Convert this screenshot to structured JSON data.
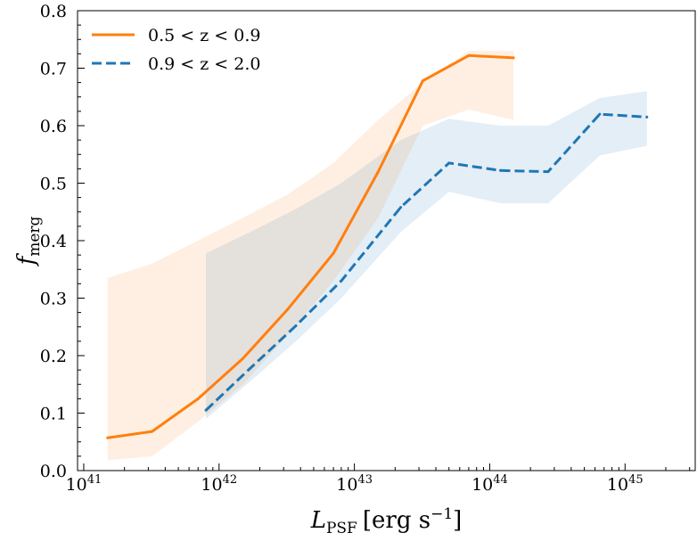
{
  "chart_data": {
    "type": "line",
    "xscale": "log",
    "xlabel": "L_PSF [erg s^-1]",
    "xlabel_main": "L",
    "xlabel_sub": "PSF",
    "xlabel_units": "[erg s",
    "xlabel_exp": "−1",
    "xlabel_close": "]",
    "ylabel": "f_merg",
    "ylabel_main": "f",
    "ylabel_sub": "merg",
    "xlim": [
      9e+40,
      3.3e+45
    ],
    "ylim": [
      0.0,
      0.8
    ],
    "x_ticks": [
      {
        "value": 1e+41,
        "base": "10",
        "exp": "41"
      },
      {
        "value": 1e+42,
        "base": "10",
        "exp": "42"
      },
      {
        "value": 1e+43,
        "base": "10",
        "exp": "43"
      },
      {
        "value": 1e+44,
        "base": "10",
        "exp": "44"
      },
      {
        "value": 1e+45,
        "base": "10",
        "exp": "45"
      }
    ],
    "y_ticks": [
      {
        "value": 0.0,
        "label": "0.0"
      },
      {
        "value": 0.1,
        "label": "0.1"
      },
      {
        "value": 0.2,
        "label": "0.2"
      },
      {
        "value": 0.3,
        "label": "0.3"
      },
      {
        "value": 0.4,
        "label": "0.4"
      },
      {
        "value": 0.5,
        "label": "0.5"
      },
      {
        "value": 0.6,
        "label": "0.6"
      },
      {
        "value": 0.7,
        "label": "0.7"
      },
      {
        "value": 0.8,
        "label": "0.8"
      }
    ],
    "legend_position": "top-left",
    "series": [
      {
        "name": "0.5 < z < 0.9",
        "legend_label": "0.5 < z < 0.9",
        "color": "#ff7f0e",
        "linestyle": "solid",
        "x": [
          1.5e+41,
          3.2e+41,
          7e+41,
          1.5e+42,
          3.2e+42,
          7e+42,
          1.5e+43,
          3.2e+43,
          7e+43,
          1.5e+44
        ],
        "values": [
          0.057,
          0.068,
          0.125,
          0.195,
          0.28,
          0.378,
          0.52,
          0.678,
          0.722,
          0.718
        ],
        "band_x": [
          1.5e+41,
          3.2e+41,
          7e+41,
          1.5e+42,
          3.2e+42,
          7e+42,
          1.5e+43,
          3.2e+43,
          7e+43,
          1.5e+44
        ],
        "band_lower": [
          0.018,
          0.025,
          0.085,
          0.15,
          0.235,
          0.33,
          0.44,
          0.6,
          0.628,
          0.61
        ],
        "band_upper": [
          0.335,
          0.36,
          0.4,
          0.44,
          0.48,
          0.535,
          0.61,
          0.675,
          0.73,
          0.73
        ]
      },
      {
        "name": "0.9 < z < 2.0",
        "legend_label": "0.9 < z < 2.0",
        "color": "#1f77b4",
        "linestyle": "dashed",
        "x": [
          8e+41,
          1.7e+42,
          3.7e+42,
          8e+42,
          2.2e+43,
          5e+43,
          1.2e+44,
          2.7e+44,
          6.5e+44,
          1.45e+45
        ],
        "values": [
          0.105,
          0.178,
          0.252,
          0.33,
          0.458,
          0.535,
          0.522,
          0.52,
          0.62,
          0.615
        ],
        "band_x": [
          8e+41,
          1.7e+42,
          3.7e+42,
          8e+42,
          2.2e+43,
          5e+43,
          1.2e+44,
          2.7e+44,
          6.5e+44,
          1.45e+45
        ],
        "band_lower": [
          0.09,
          0.155,
          0.225,
          0.3,
          0.415,
          0.485,
          0.465,
          0.465,
          0.548,
          0.565
        ],
        "band_upper": [
          0.378,
          0.415,
          0.455,
          0.5,
          0.575,
          0.612,
          0.6,
          0.6,
          0.648,
          0.66
        ]
      }
    ]
  }
}
